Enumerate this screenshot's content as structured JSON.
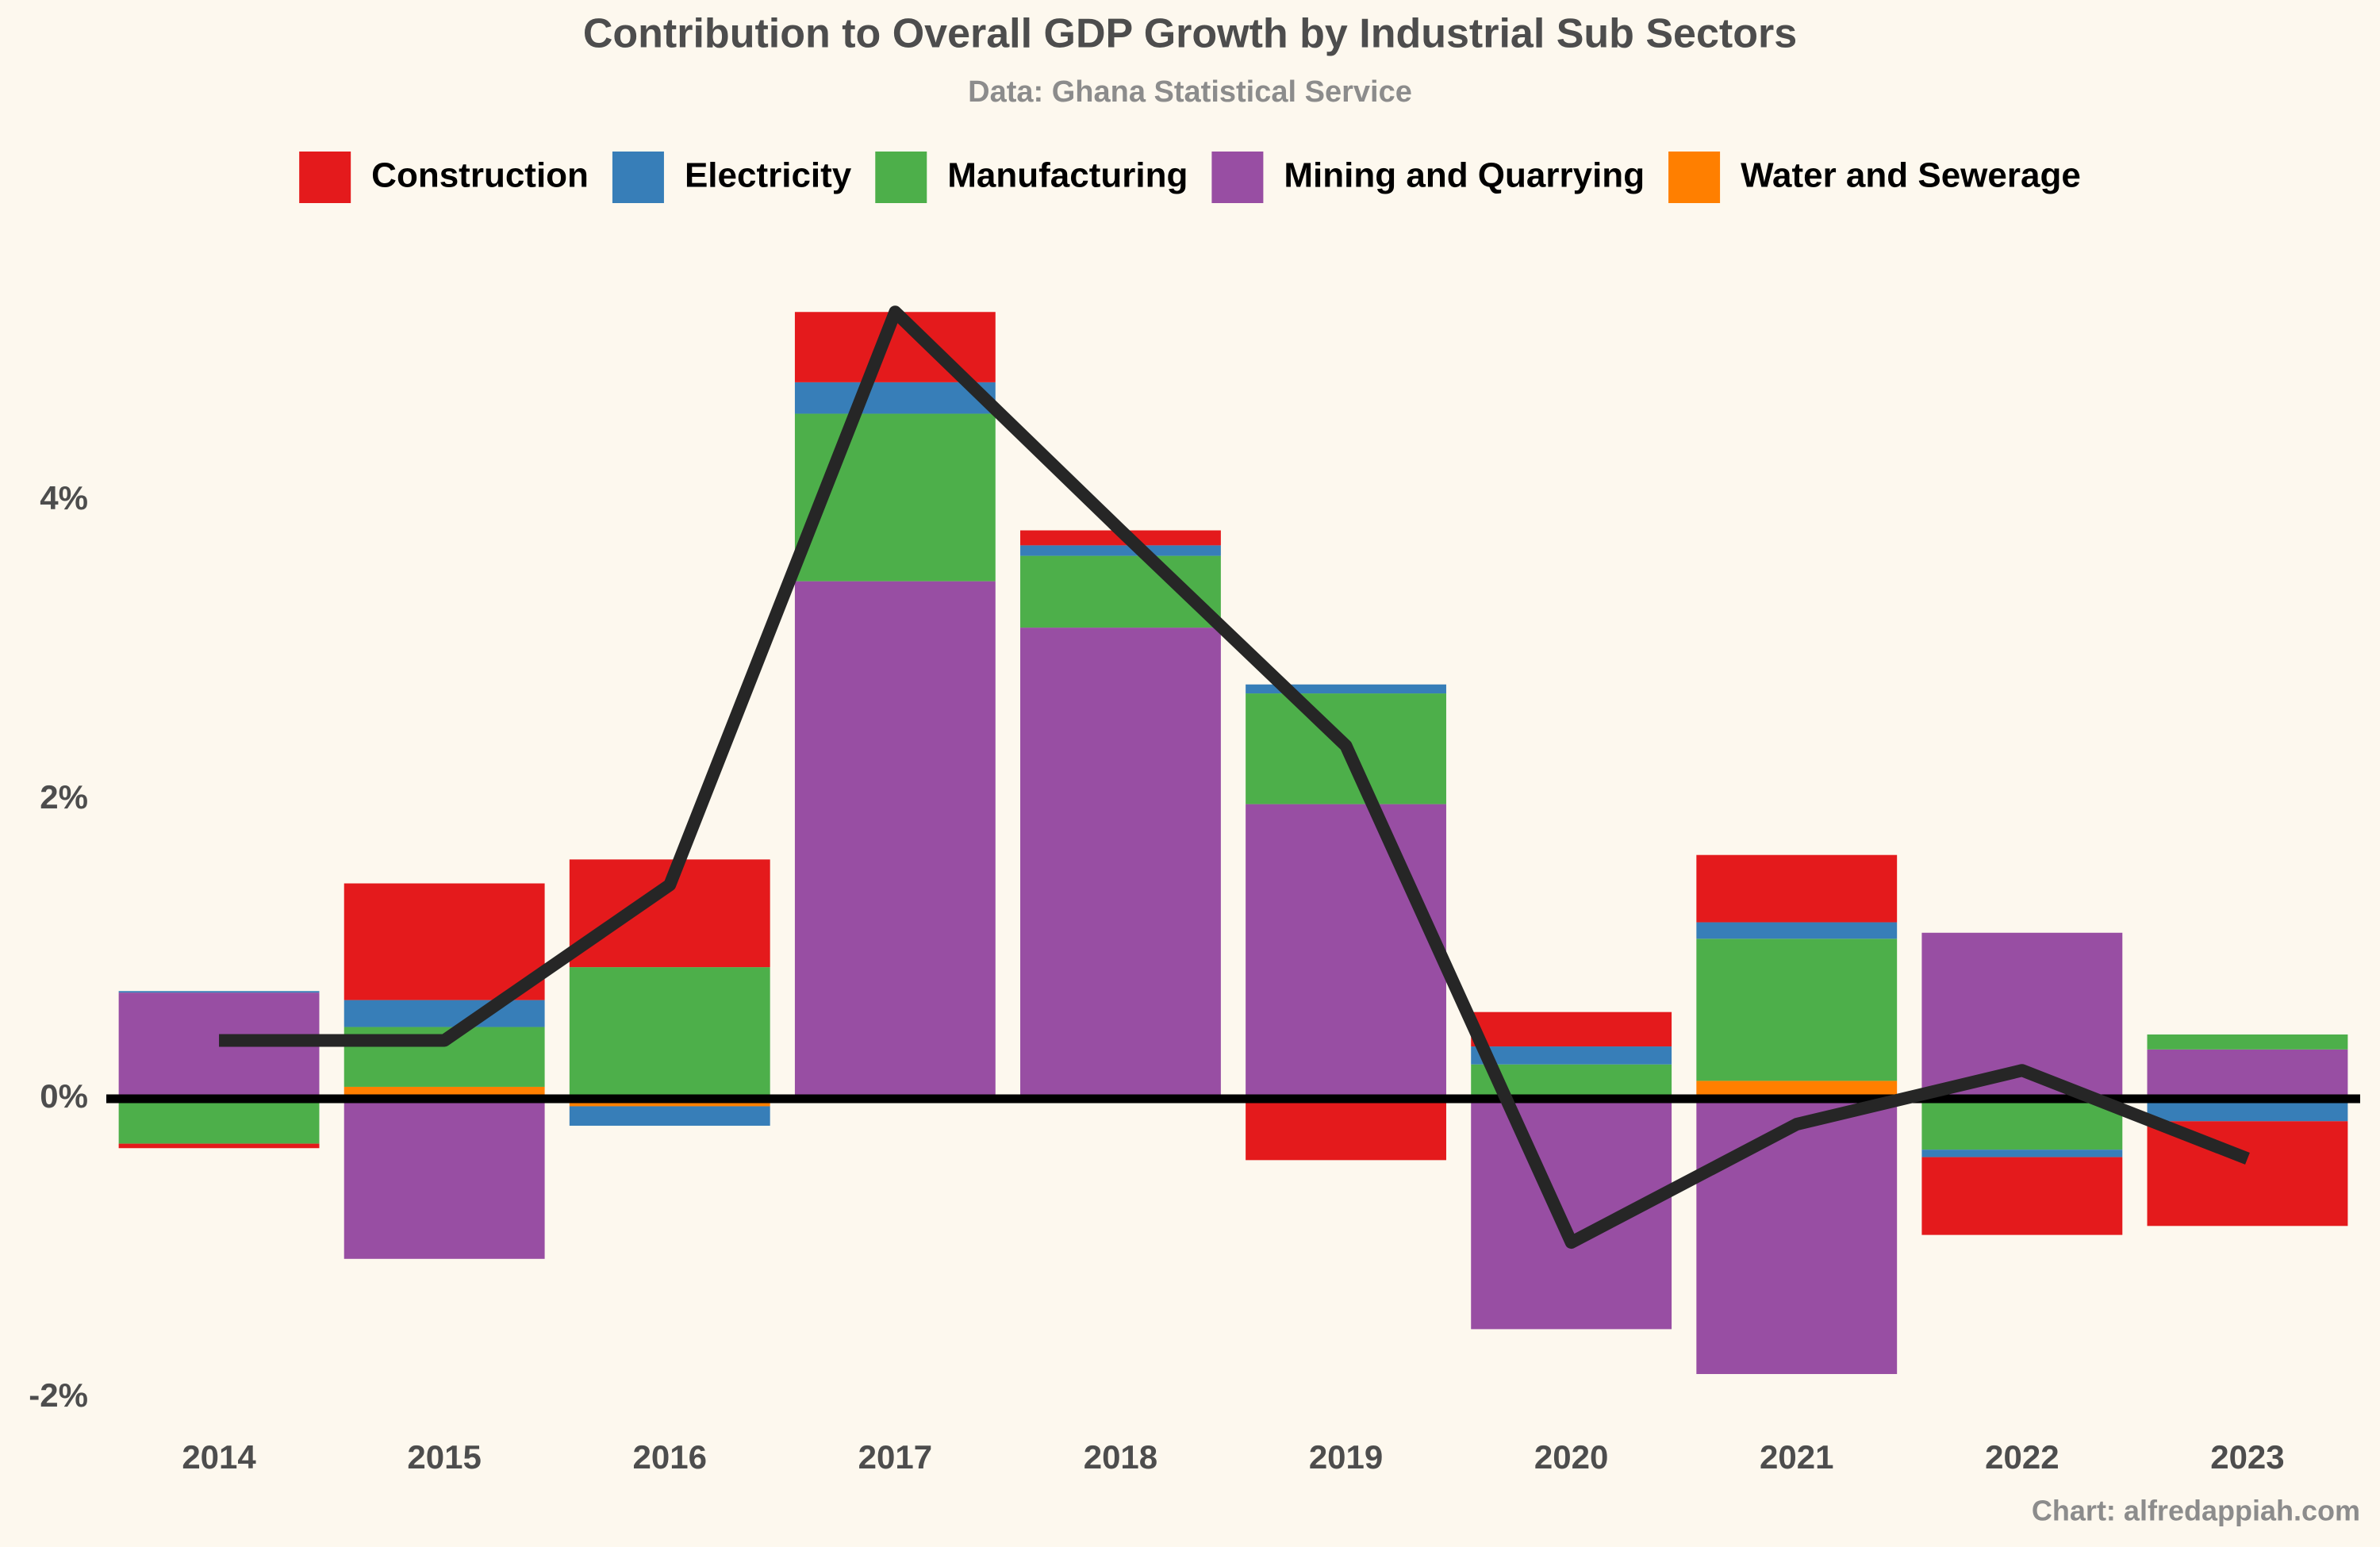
{
  "chart_data": {
    "type": "stacked_bar_line",
    "title": "Contribution to Overall GDP Growth by Industrial Sub Sectors",
    "subtitle": "Data: Ghana Statistical Service",
    "caption": "Chart: alfredappiah.com",
    "categories": [
      "2014",
      "2015",
      "2016",
      "2017",
      "2018",
      "2019",
      "2020",
      "2021",
      "2022",
      "2023"
    ],
    "series": [
      {
        "name": "Construction",
        "color": "#e41a1c",
        "values": [
          -0.03,
          0.78,
          0.72,
          0.47,
          0.1,
          -0.41,
          0.23,
          0.45,
          -0.52,
          -0.7
        ]
      },
      {
        "name": "Electricity",
        "color": "#377eb8",
        "values": [
          0.01,
          0.18,
          -0.13,
          0.21,
          0.07,
          0.06,
          0.12,
          0.11,
          -0.05,
          -0.15
        ]
      },
      {
        "name": "Manufacturing",
        "color": "#4daf4a",
        "values": [
          -0.3,
          0.4,
          0.88,
          1.12,
          0.48,
          0.74,
          0.23,
          0.95,
          -0.34,
          0.1
        ]
      },
      {
        "name": "Mining and Quarrying",
        "color": "#984ea3",
        "values": [
          0.71,
          -1.07,
          0,
          3.46,
          3.15,
          1.97,
          -1.54,
          -1.84,
          1.11,
          0.33
        ]
      },
      {
        "name": "Water and Sewerage",
        "color": "#ff7f00",
        "values": [
          0,
          0.08,
          -0.05,
          0,
          0,
          0,
          0,
          0.12,
          0,
          0
        ]
      }
    ],
    "line": {
      "color": "#262626",
      "values": [
        0.39,
        0.39,
        1.43,
        5.26,
        3.8,
        2.36,
        -0.96,
        -0.17,
        0.19,
        -0.4
      ]
    },
    "ylim": [
      -2.1,
      5.5
    ],
    "yticks": [
      {
        "value": -2,
        "label": "-2%"
      },
      {
        "value": 0,
        "label": "0%"
      },
      {
        "value": 2,
        "label": "2%"
      },
      {
        "value": 4,
        "label": "4%"
      }
    ],
    "legend": "top",
    "grid": false
  }
}
